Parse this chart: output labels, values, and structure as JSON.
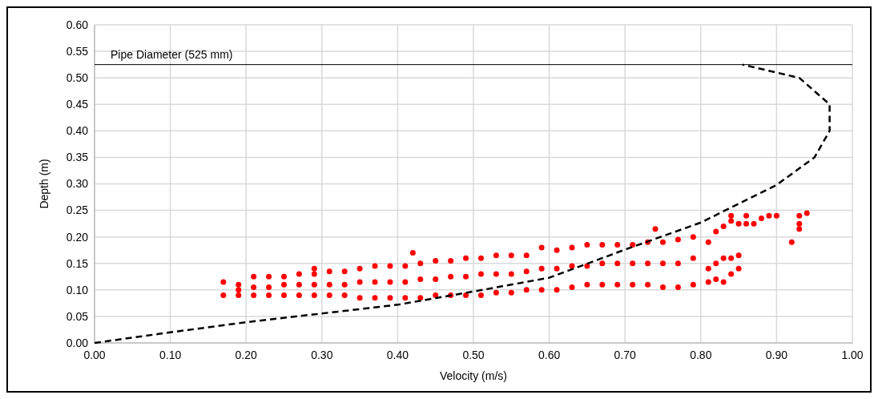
{
  "chart_data": {
    "type": "scatter",
    "xlabel": "Velocity (m/s)",
    "ylabel": "Depth (m)",
    "xlim": [
      0,
      1
    ],
    "xticks": [
      {
        "value": 0,
        "label": "0.00"
      },
      {
        "value": 0.1,
        "label": "0.10"
      },
      {
        "value": 0.2,
        "label": "0.20"
      },
      {
        "value": 0.3,
        "label": "0.30"
      },
      {
        "value": 0.4,
        "label": "0.40"
      },
      {
        "value": 0.5,
        "label": "0.50"
      },
      {
        "value": 0.6,
        "label": "0.60"
      },
      {
        "value": 0.7,
        "label": "0.70"
      },
      {
        "value": 0.8,
        "label": "0.80"
      },
      {
        "value": 0.9,
        "label": "0.90"
      },
      {
        "value": 1,
        "label": "1.00"
      }
    ],
    "ylim": [
      0,
      0.6
    ],
    "yticks": [
      {
        "value": 0,
        "label": "0.00"
      },
      {
        "value": 0.05,
        "label": "0.05"
      },
      {
        "value": 0.1,
        "label": "0.10"
      },
      {
        "value": 0.15,
        "label": "0.15"
      },
      {
        "value": 0.2,
        "label": "0.20"
      },
      {
        "value": 0.25,
        "label": "0.25"
      },
      {
        "value": 0.3,
        "label": "0.30"
      },
      {
        "value": 0.35,
        "label": "0.35"
      },
      {
        "value": 0.4,
        "label": "0.40"
      },
      {
        "value": 0.45,
        "label": "0.45"
      },
      {
        "value": 0.5,
        "label": "0.50"
      },
      {
        "value": 0.55,
        "label": "0.55"
      },
      {
        "value": 0.6,
        "label": "0.60"
      }
    ],
    "grid": true,
    "ref_lines": [
      {
        "axis": "y",
        "value": 0.525,
        "label": "Pipe Diameter (525 mm)",
        "color": "#000000",
        "line_style": "solid"
      }
    ],
    "series": [
      {
        "color": "#ff0000",
        "marker": "circle",
        "x": [
          0.17,
          0.17,
          0.19,
          0.19,
          0.19,
          0.21,
          0.21,
          0.21,
          0.23,
          0.23,
          0.23,
          0.25,
          0.25,
          0.25,
          0.27,
          0.27,
          0.27,
          0.29,
          0.29,
          0.29,
          0.29,
          0.31,
          0.31,
          0.31,
          0.33,
          0.33,
          0.33,
          0.35,
          0.35,
          0.35,
          0.37,
          0.37,
          0.37,
          0.39,
          0.39,
          0.39,
          0.41,
          0.41,
          0.41,
          0.42,
          0.43,
          0.43,
          0.43,
          0.45,
          0.45,
          0.45,
          0.47,
          0.47,
          0.47,
          0.49,
          0.49,
          0.49,
          0.51,
          0.51,
          0.51,
          0.53,
          0.53,
          0.53,
          0.55,
          0.55,
          0.55,
          0.57,
          0.57,
          0.57,
          0.59,
          0.59,
          0.59,
          0.61,
          0.61,
          0.61,
          0.63,
          0.63,
          0.63,
          0.65,
          0.65,
          0.65,
          0.67,
          0.67,
          0.67,
          0.69,
          0.69,
          0.69,
          0.71,
          0.71,
          0.71,
          0.73,
          0.73,
          0.73,
          0.74,
          0.75,
          0.75,
          0.75,
          0.77,
          0.77,
          0.77,
          0.79,
          0.79,
          0.79,
          0.81,
          0.81,
          0.81,
          0.82,
          0.82,
          0.82,
          0.83,
          0.83,
          0.83,
          0.84,
          0.84,
          0.84,
          0.84,
          0.85,
          0.85,
          0.85,
          0.86,
          0.86,
          0.87,
          0.88,
          0.89,
          0.9,
          0.92,
          0.93,
          0.93,
          0.93,
          0.94
        ],
        "values": [
          0.09,
          0.115,
          0.09,
          0.1,
          0.11,
          0.09,
          0.105,
          0.125,
          0.09,
          0.105,
          0.125,
          0.09,
          0.11,
          0.125,
          0.09,
          0.11,
          0.13,
          0.09,
          0.11,
          0.13,
          0.14,
          0.09,
          0.11,
          0.135,
          0.09,
          0.11,
          0.135,
          0.085,
          0.115,
          0.14,
          0.085,
          0.115,
          0.145,
          0.085,
          0.115,
          0.145,
          0.085,
          0.115,
          0.145,
          0.17,
          0.085,
          0.12,
          0.15,
          0.09,
          0.12,
          0.155,
          0.09,
          0.125,
          0.155,
          0.09,
          0.125,
          0.16,
          0.09,
          0.13,
          0.16,
          0.095,
          0.13,
          0.165,
          0.095,
          0.13,
          0.165,
          0.1,
          0.135,
          0.165,
          0.1,
          0.14,
          0.18,
          0.1,
          0.14,
          0.175,
          0.105,
          0.145,
          0.18,
          0.11,
          0.145,
          0.185,
          0.11,
          0.15,
          0.185,
          0.11,
          0.15,
          0.185,
          0.11,
          0.15,
          0.185,
          0.11,
          0.15,
          0.19,
          0.215,
          0.105,
          0.15,
          0.19,
          0.105,
          0.15,
          0.195,
          0.11,
          0.16,
          0.2,
          0.115,
          0.14,
          0.19,
          0.12,
          0.15,
          0.21,
          0.115,
          0.16,
          0.22,
          0.13,
          0.16,
          0.23,
          0.24,
          0.14,
          0.165,
          0.225,
          0.225,
          0.24,
          0.225,
          0.235,
          0.24,
          0.24,
          0.19,
          0.215,
          0.225,
          0.24,
          0.245
        ]
      },
      {
        "type": "line",
        "color": "#000000",
        "marker": "none",
        "line_style": "dashed",
        "x": [
          0,
          0.1,
          0.2,
          0.4,
          0.5,
          0.6,
          0.7,
          0.8,
          0.9,
          0.95,
          0.97,
          0.97,
          0.93,
          0.855
        ],
        "values": [
          0,
          0.02,
          0.039,
          0.072,
          0.097,
          0.123,
          0.176,
          0.227,
          0.298,
          0.35,
          0.4,
          0.45,
          0.5,
          0.525
        ]
      }
    ]
  }
}
